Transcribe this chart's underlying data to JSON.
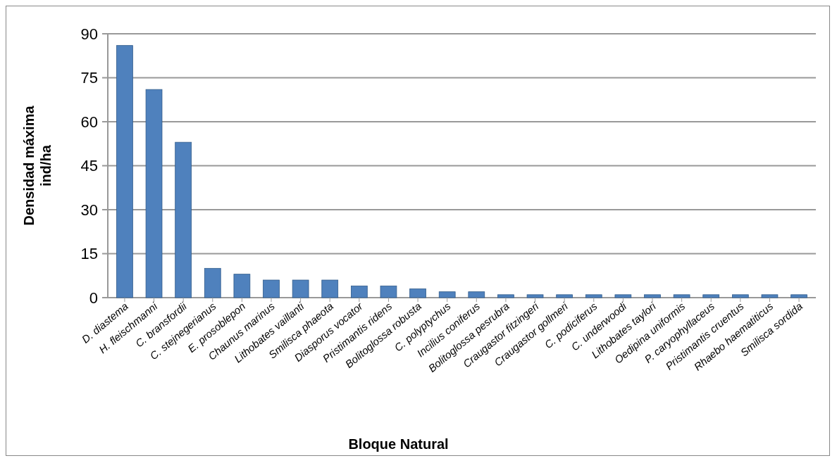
{
  "chart_data": {
    "type": "bar",
    "xlabel": "Bloque Natural",
    "ylabel": "Densidad máxima ind/ha",
    "categories": [
      "D. diastema",
      "H. fleischmanni",
      "C. bransfordii",
      "C. stejnegerianus",
      "E. prosoblepon",
      "Chaunus marinus",
      "Lithobates vaillanti",
      "Smilisca phaeota",
      "Diasporus vocator",
      "Pristimantis ridens",
      "Bolitoglossa robusta",
      "C. polyptychus",
      "Incilius coniferus",
      "Bolitoglossa pesrubra",
      "Craugastor fitzingeri",
      "Craugastor gollmeri",
      "C. podiciferus",
      "C. underwoodi",
      "Lithobates taylori",
      "Oedipina uniformis",
      "P. caryophyllaceus",
      "Pristimantis cruentus",
      "Rhaebo haematiticus",
      "Smilisca sordida"
    ],
    "values": [
      86,
      71,
      53,
      10,
      8,
      6,
      6,
      6,
      4,
      4,
      3,
      2,
      2,
      1,
      1,
      1,
      1,
      1,
      1,
      1,
      1,
      1,
      1,
      1
    ],
    "color": "#4f81bd",
    "ylim": [
      0,
      90
    ],
    "yticks": [
      0,
      15,
      30,
      45,
      60,
      75,
      90
    ],
    "grid": "y"
  }
}
